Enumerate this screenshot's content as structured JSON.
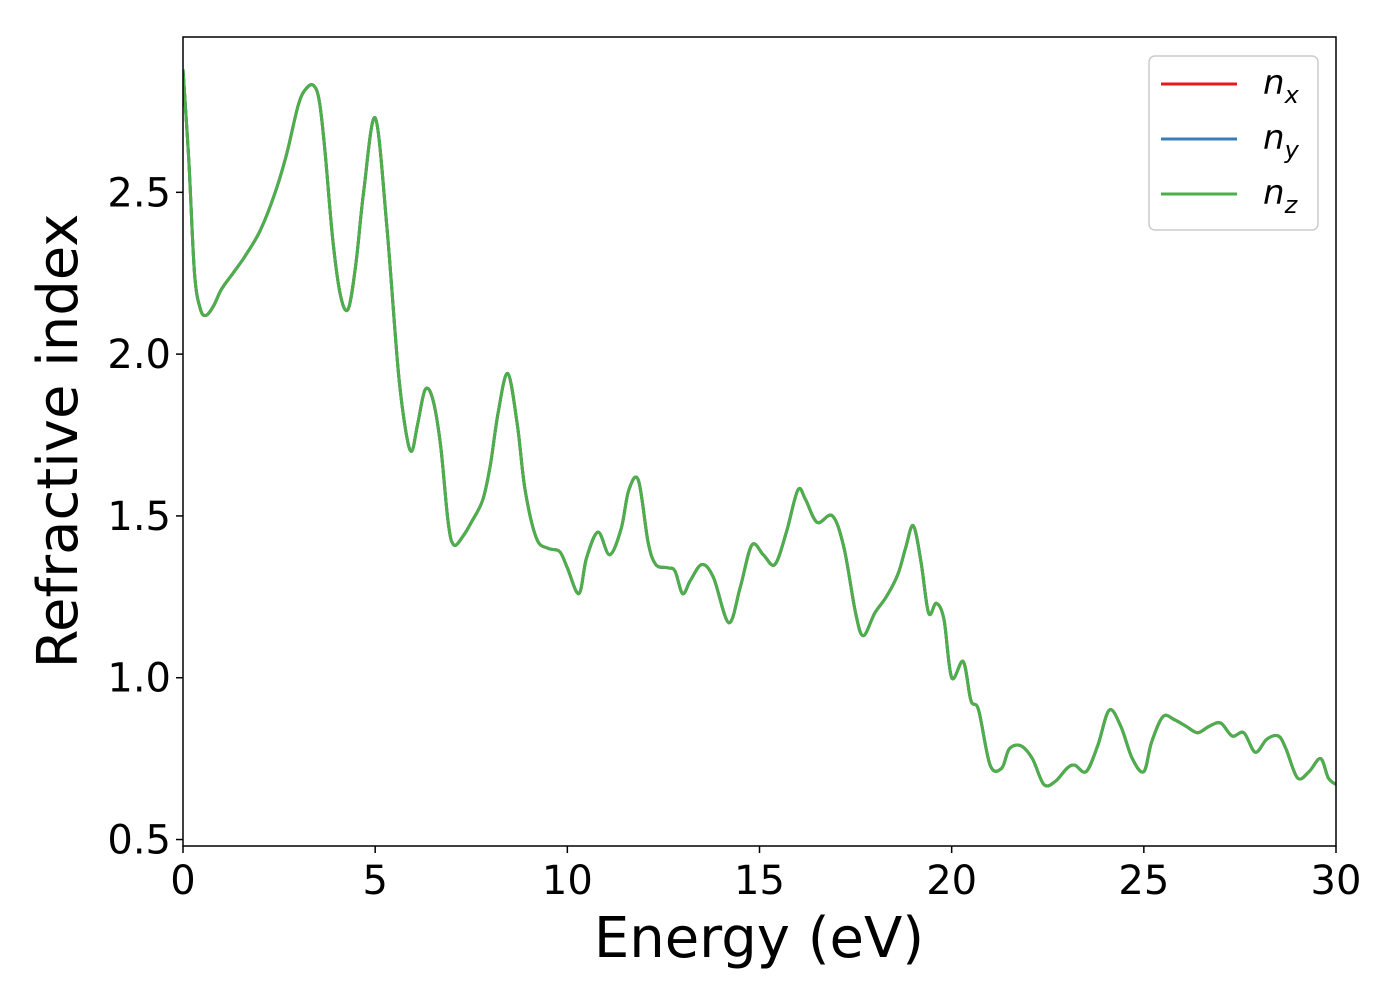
{
  "chart_data": {
    "type": "line",
    "title": "",
    "xlabel": "Energy (eV)",
    "ylabel": "Refractive index",
    "xlim": [
      0,
      30
    ],
    "ylim": [
      0.48,
      2.98
    ],
    "xticks": [
      0,
      5,
      10,
      15,
      20,
      25,
      30
    ],
    "xtick_labels": [
      "0",
      "5",
      "10",
      "15",
      "20",
      "25",
      "30"
    ],
    "yticks": [
      0.5,
      1.0,
      1.5,
      2.0,
      2.5
    ],
    "ytick_labels": [
      "0.5",
      "1.0",
      "1.5",
      "2.0",
      "2.5"
    ],
    "grid": false,
    "legend_position": "top-right",
    "series": [
      {
        "name": "n_x",
        "label_main": "n",
        "label_sub": "x",
        "color": "#e41a1c"
      },
      {
        "name": "n_y",
        "label_main": "n",
        "label_sub": "y",
        "color": "#377eb8"
      },
      {
        "name": "n_z",
        "label_main": "n",
        "label_sub": "z",
        "color": "#4daf4a"
      }
    ],
    "x": [
      0,
      0.15,
      0.3,
      0.45,
      0.6,
      0.8,
      1.0,
      1.3,
      1.6,
      2.0,
      2.4,
      2.7,
      3.0,
      3.2,
      3.4,
      3.55,
      3.7,
      3.9,
      4.1,
      4.3,
      4.5,
      4.7,
      5.0,
      5.3,
      5.6,
      5.8,
      5.95,
      6.1,
      6.3,
      6.5,
      6.7,
      6.9,
      7.05,
      7.3,
      7.5,
      7.8,
      8.0,
      8.2,
      8.45,
      8.7,
      8.9,
      9.2,
      9.5,
      9.8,
      10.0,
      10.3,
      10.5,
      10.8,
      11.1,
      11.4,
      11.6,
      11.85,
      12.1,
      12.3,
      12.6,
      12.8,
      13.0,
      13.2,
      13.5,
      13.8,
      14.2,
      14.5,
      14.8,
      15.1,
      15.4,
      15.7,
      16.0,
      16.2,
      16.5,
      16.9,
      17.2,
      17.5,
      17.7,
      18.0,
      18.3,
      18.6,
      18.8,
      19.0,
      19.2,
      19.4,
      19.6,
      19.8,
      20.0,
      20.3,
      20.5,
      20.7,
      21.0,
      21.3,
      21.5,
      21.8,
      22.1,
      22.4,
      22.7,
      23.0,
      23.2,
      23.5,
      23.8,
      24.1,
      24.4,
      24.7,
      25.0,
      25.2,
      25.5,
      25.8,
      26.1,
      26.4,
      26.7,
      27.0,
      27.3,
      27.6,
      27.9,
      28.2,
      28.5,
      28.7,
      29.0,
      29.3,
      29.6,
      29.8,
      30.0
    ],
    "values": [
      2.88,
      2.6,
      2.25,
      2.14,
      2.12,
      2.15,
      2.2,
      2.25,
      2.3,
      2.38,
      2.5,
      2.62,
      2.77,
      2.82,
      2.83,
      2.78,
      2.62,
      2.35,
      2.18,
      2.14,
      2.28,
      2.5,
      2.73,
      2.4,
      1.95,
      1.76,
      1.7,
      1.78,
      1.89,
      1.86,
      1.72,
      1.48,
      1.41,
      1.44,
      1.48,
      1.55,
      1.66,
      1.82,
      1.94,
      1.78,
      1.58,
      1.43,
      1.4,
      1.39,
      1.34,
      1.26,
      1.37,
      1.45,
      1.38,
      1.46,
      1.58,
      1.61,
      1.42,
      1.35,
      1.34,
      1.33,
      1.26,
      1.3,
      1.35,
      1.31,
      1.17,
      1.28,
      1.41,
      1.38,
      1.35,
      1.45,
      1.58,
      1.55,
      1.48,
      1.5,
      1.4,
      1.2,
      1.13,
      1.2,
      1.25,
      1.32,
      1.4,
      1.47,
      1.36,
      1.2,
      1.23,
      1.18,
      1.0,
      1.05,
      0.93,
      0.9,
      0.73,
      0.72,
      0.78,
      0.79,
      0.75,
      0.67,
      0.68,
      0.72,
      0.73,
      0.71,
      0.79,
      0.9,
      0.85,
      0.75,
      0.71,
      0.8,
      0.88,
      0.87,
      0.85,
      0.83,
      0.85,
      0.86,
      0.82,
      0.83,
      0.77,
      0.81,
      0.82,
      0.78,
      0.69,
      0.71,
      0.75,
      0.69,
      0.67
    ]
  }
}
